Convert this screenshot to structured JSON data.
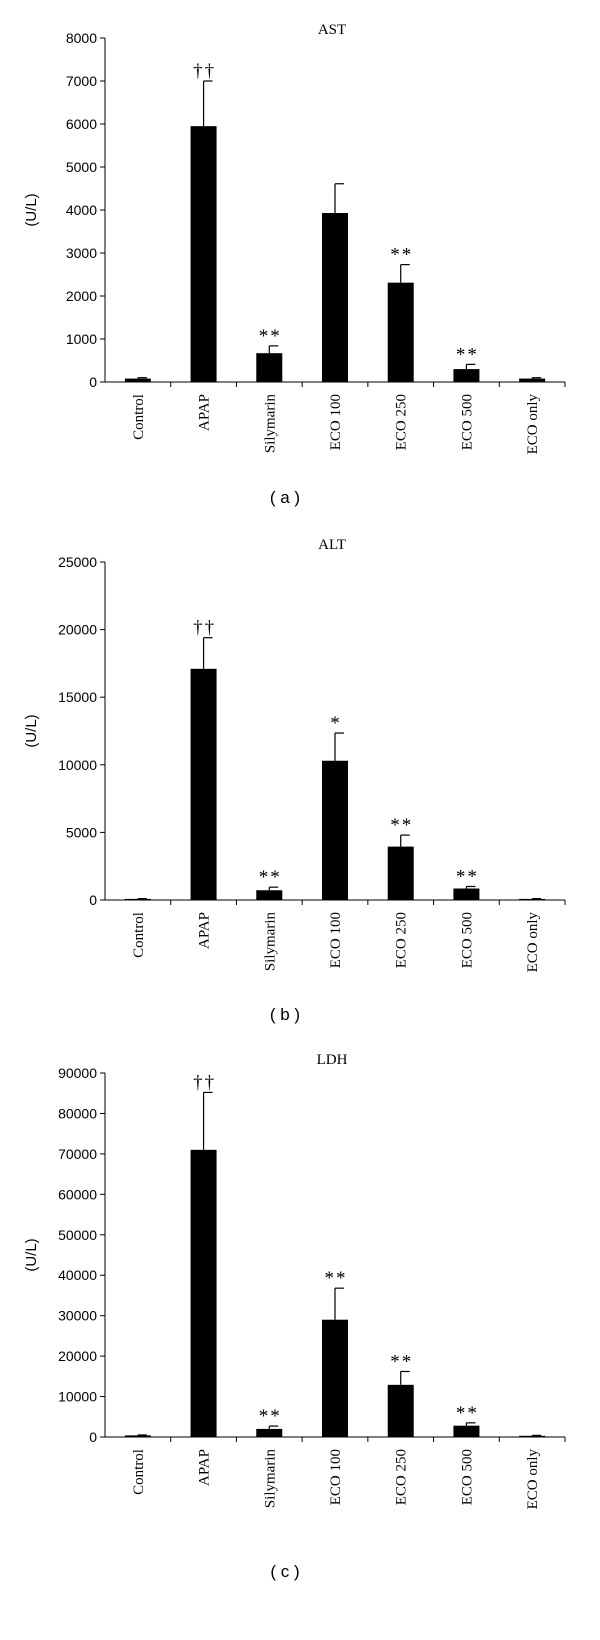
{
  "chart_data": [
    {
      "type": "bar",
      "panel_label": "( a )",
      "title": "AST",
      "ylabel": "(U/L)",
      "xlabel": "",
      "categories": [
        "Control",
        "APAP",
        "Silymarin",
        "ECO 100",
        "ECO 250",
        "ECO 500",
        "ECO only"
      ],
      "values": [
        80,
        5950,
        670,
        3930,
        2310,
        300,
        80
      ],
      "errors": [
        20,
        1050,
        170,
        680,
        420,
        110,
        20
      ],
      "annotations": [
        "",
        "††",
        "**",
        "",
        "**",
        "**",
        ""
      ],
      "ylim": [
        0,
        8000
      ],
      "yticks": [
        0,
        1000,
        2000,
        3000,
        4000,
        5000,
        6000,
        7000,
        8000
      ],
      "bar_color": "#000000",
      "grid": false
    },
    {
      "type": "bar",
      "panel_label": "( b )",
      "title": "ALT",
      "ylabel": "(U/L)",
      "xlabel": "",
      "categories": [
        "Control",
        "APAP",
        "Silymarin",
        "ECO 100",
        "ECO 250",
        "ECO 500",
        "ECO only"
      ],
      "values": [
        80,
        17100,
        720,
        10300,
        3950,
        850,
        80
      ],
      "errors": [
        20,
        2300,
        230,
        2050,
        850,
        150,
        20
      ],
      "annotations": [
        "",
        "††",
        "**",
        "*",
        "**",
        "**",
        ""
      ],
      "ylim": [
        0,
        25000
      ],
      "yticks": [
        0,
        5000,
        10000,
        15000,
        20000,
        25000
      ],
      "bar_color": "#000000",
      "grid": false
    },
    {
      "type": "bar",
      "panel_label": "( c )",
      "title": "LDH",
      "ylabel": "(U/L)",
      "xlabel": "",
      "categories": [
        "Control",
        "APAP",
        "Silymarin",
        "ECO 100",
        "ECO 250",
        "ECO 500",
        "ECO only"
      ],
      "values": [
        400,
        71000,
        2000,
        29000,
        12900,
        2800,
        300
      ],
      "errors": [
        100,
        14200,
        700,
        7800,
        3300,
        700,
        100
      ],
      "annotations": [
        "",
        "††",
        "**",
        "**",
        "**",
        "**",
        ""
      ],
      "ylim": [
        0,
        90000
      ],
      "yticks": [
        0,
        10000,
        20000,
        30000,
        40000,
        50000,
        60000,
        70000,
        80000,
        90000
      ],
      "bar_color": "#000000",
      "grid": false
    }
  ]
}
